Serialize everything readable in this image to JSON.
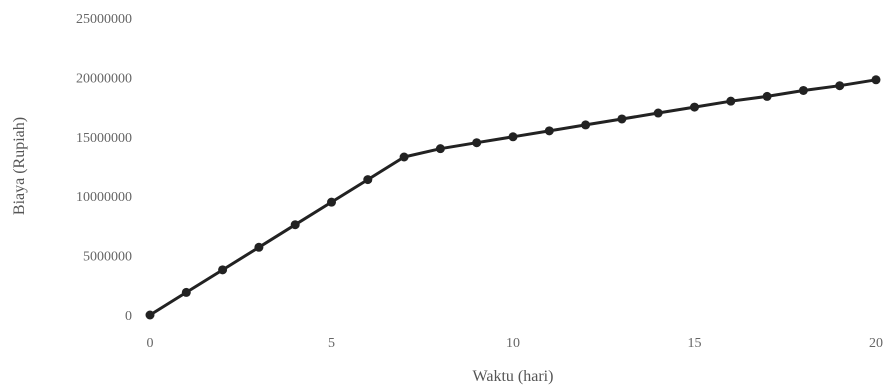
{
  "chart_data": {
    "type": "line",
    "title": "",
    "xlabel": "Waktu (hari)",
    "ylabel": "Biaya (Rupiah)",
    "xlim": [
      0,
      20
    ],
    "ylim": [
      0,
      25000000
    ],
    "x_ticks": [
      0,
      5,
      10,
      15,
      20
    ],
    "y_ticks": [
      0,
      5000000,
      10000000,
      15000000,
      20000000,
      25000000
    ],
    "x_tick_labels": [
      "0",
      "5",
      "10",
      "15",
      "20"
    ],
    "y_tick_labels": [
      "0",
      "5000000",
      "10000000",
      "15000000",
      "20000000",
      "25000000"
    ],
    "grid": false,
    "legend": "none",
    "series": [
      {
        "color": "#222222",
        "marker": "circle",
        "x": [
          0,
          1,
          2,
          3,
          4,
          5,
          6,
          7,
          8,
          9,
          10,
          11,
          12,
          13,
          14,
          15,
          16,
          17,
          18,
          19,
          20
        ],
        "values": [
          0,
          1900000,
          3800000,
          5700000,
          7600000,
          9500000,
          11400000,
          13300000,
          14000000,
          14500000,
          15000000,
          15500000,
          16000000,
          16500000,
          17000000,
          17500000,
          18000000,
          18400000,
          18900000,
          19300000,
          19800000
        ]
      }
    ]
  }
}
